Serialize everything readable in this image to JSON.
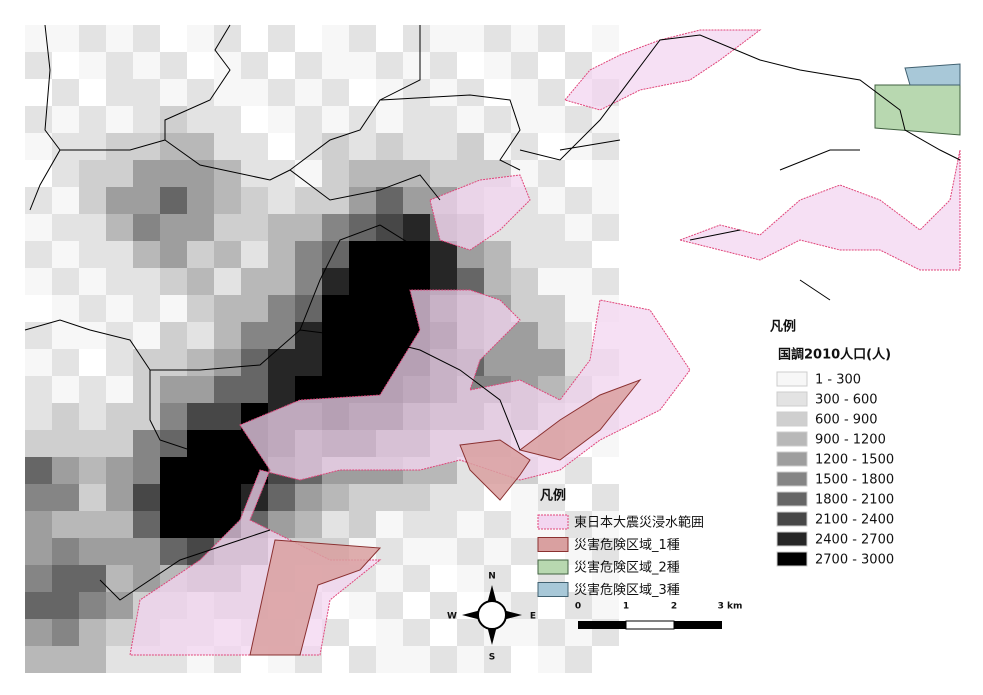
{
  "population_legend": {
    "title": "凡例",
    "subtitle": "国調2010人口(人)",
    "classes": [
      {
        "label": "1 - 300",
        "color": "#f7f7f7"
      },
      {
        "label": "300 - 600",
        "color": "#e3e3e3"
      },
      {
        "label": "600 - 900",
        "color": "#cfcfcf"
      },
      {
        "label": "900 - 1200",
        "color": "#b8b8b8"
      },
      {
        "label": "1200 - 1500",
        "color": "#9e9e9e"
      },
      {
        "label": "1500 - 1800",
        "color": "#858585"
      },
      {
        "label": "1800 - 2100",
        "color": "#666666"
      },
      {
        "label": "2100 - 2400",
        "color": "#474747"
      },
      {
        "label": "2400 - 2700",
        "color": "#262626"
      },
      {
        "label": "2700 - 3000",
        "color": "#000000"
      }
    ]
  },
  "hazard_legend": {
    "title": "凡例",
    "items": [
      {
        "label": "東日本大震災浸水範囲",
        "color": "#f3d6f0",
        "stroke": "#e0457a"
      },
      {
        "label": "災害危険区域_1種",
        "color": "#d9a0a0",
        "stroke": "#8a3030"
      },
      {
        "label": "災害危険区域_2種",
        "color": "#b8d8b0",
        "stroke": "#406040"
      },
      {
        "label": "災害危険区域_3種",
        "color": "#a8c8d8",
        "stroke": "#406070"
      }
    ]
  },
  "compass": {
    "north": "N",
    "east": "E",
    "south": "S",
    "west": "W"
  },
  "scale_bar": {
    "labels": [
      "0",
      "1",
      "2",
      "3 km"
    ]
  }
}
